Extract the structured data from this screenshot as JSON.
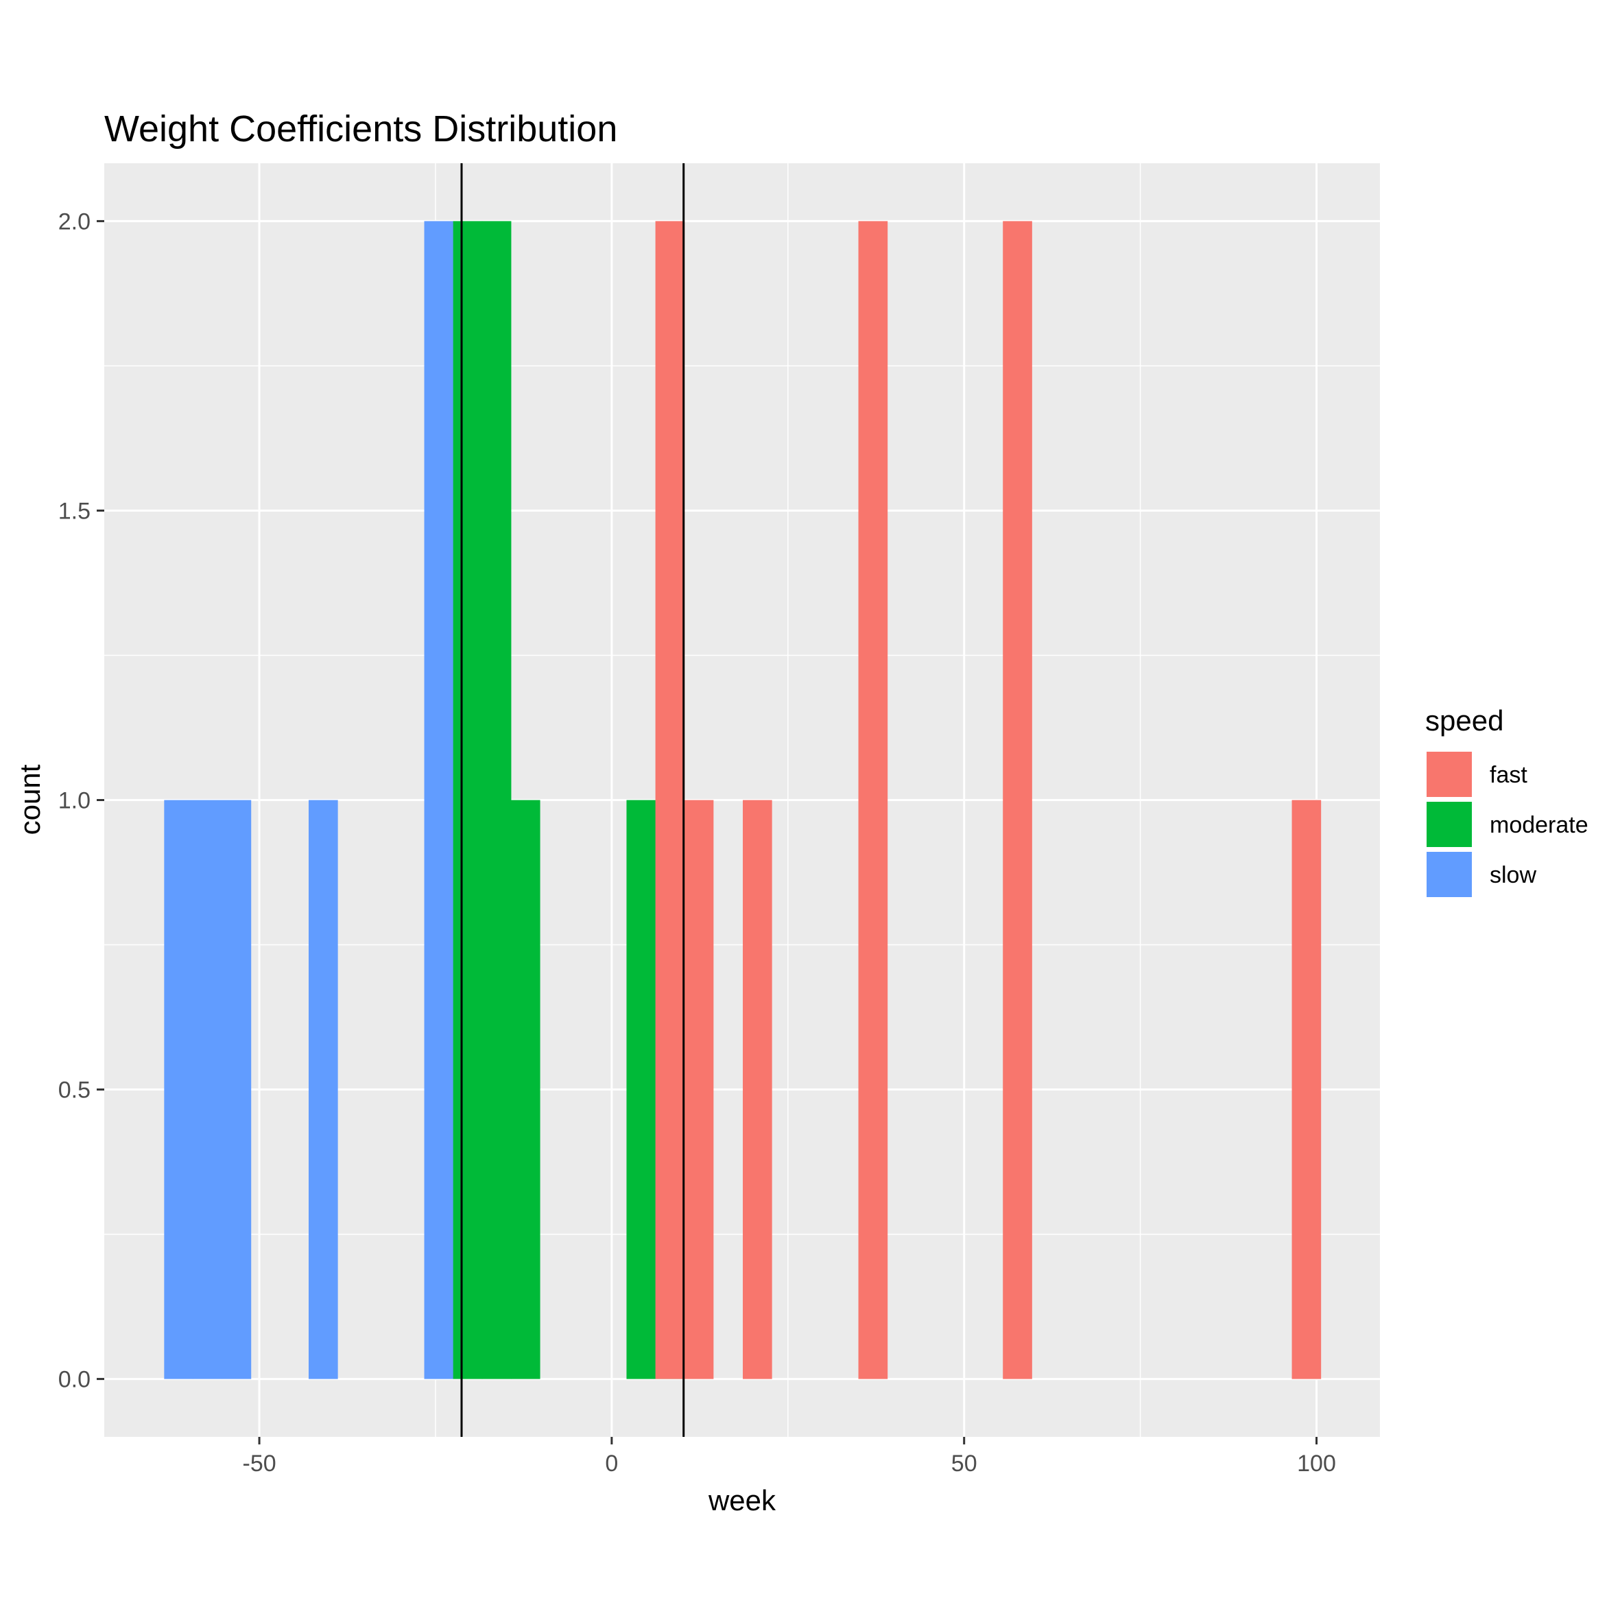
{
  "chart_data": {
    "type": "bar",
    "title": "Weight Coefficients Distribution",
    "xlabel": "week",
    "ylabel": "count",
    "xlim": [
      -72,
      109
    ],
    "ylim": [
      -0.1,
      2.1
    ],
    "x_ticks": [
      -50,
      0,
      50,
      100
    ],
    "x_tick_labels": [
      "-50",
      "0",
      "50",
      "100"
    ],
    "y_ticks": [
      0.0,
      0.5,
      1.0,
      1.5,
      2.0
    ],
    "y_tick_labels": [
      "0.0",
      "0.5",
      "1.0",
      "1.5",
      "2.0"
    ],
    "grid": true,
    "bin_width": 4.1,
    "legend": {
      "title": "speed",
      "position": "right",
      "entries": [
        {
          "label": "fast",
          "color": "#F8766D"
        },
        {
          "label": "moderate",
          "color": "#00BA38"
        },
        {
          "label": "slow",
          "color": "#619CFF"
        }
      ]
    },
    "series": [
      {
        "name": "slow",
        "color": "#619CFF",
        "bars": [
          {
            "x0": -63.5,
            "x1": -59.4,
            "count": 1
          },
          {
            "x0": -59.4,
            "x1": -55.3,
            "count": 1
          },
          {
            "x0": -55.3,
            "x1": -51.2,
            "count": 1
          },
          {
            "x0": -43.0,
            "x1": -38.9,
            "count": 1
          },
          {
            "x0": -26.6,
            "x1": -22.5,
            "count": 2
          }
        ]
      },
      {
        "name": "moderate",
        "color": "#00BA38",
        "bars": [
          {
            "x0": -22.5,
            "x1": -18.4,
            "count": 2
          },
          {
            "x0": -18.4,
            "x1": -14.3,
            "count": 2
          },
          {
            "x0": -14.3,
            "x1": -10.2,
            "count": 1
          },
          {
            "x0": 2.1,
            "x1": 6.2,
            "count": 1
          },
          {
            "x0": 6.2,
            "x1": 10.3,
            "count": 1
          }
        ]
      },
      {
        "name": "fast",
        "color": "#F8766D",
        "bars": [
          {
            "x0": 6.2,
            "x1": 10.3,
            "count": 2
          },
          {
            "x0": 10.3,
            "x1": 14.4,
            "count": 1
          },
          {
            "x0": 18.6,
            "x1": 22.7,
            "count": 1
          },
          {
            "x0": 35.0,
            "x1": 39.1,
            "count": 2
          },
          {
            "x0": 55.5,
            "x1": 59.6,
            "count": 2
          },
          {
            "x0": 96.5,
            "x1": 100.6,
            "count": 1
          }
        ]
      }
    ],
    "vlines": [
      -21.3,
      10.2
    ],
    "colors": {
      "panel": "#EBEBEB",
      "grid": "#FFFFFF",
      "vline": "#000000"
    }
  }
}
